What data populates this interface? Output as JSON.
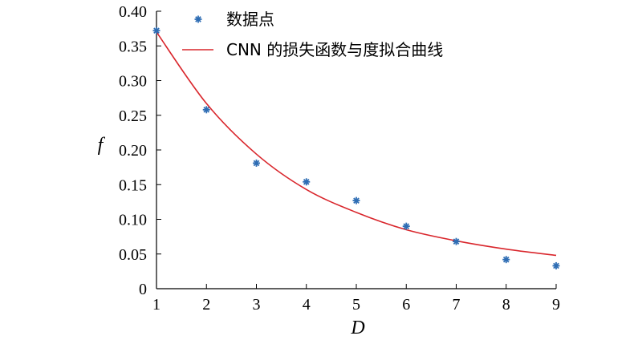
{
  "chart_data": {
    "type": "scatter",
    "xlabel": "D",
    "ylabel": "f",
    "xlim": [
      1,
      9
    ],
    "ylim": [
      0,
      0.4
    ],
    "xticks": [
      "1",
      "2",
      "3",
      "4",
      "5",
      "6",
      "7",
      "8",
      "9"
    ],
    "yticks": [
      "0",
      "0.05",
      "0.10",
      "0.15",
      "0.20",
      "0.25",
      "0.30",
      "0.35",
      "0.40"
    ],
    "grid": false,
    "legend_position": "top-right",
    "series": [
      {
        "name": "数据点",
        "kind": "scatter",
        "marker": "asterisk",
        "color": "#2e6db4",
        "x": [
          1,
          2,
          3,
          4,
          5,
          6,
          7,
          8,
          9
        ],
        "y": [
          0.372,
          0.258,
          0.181,
          0.154,
          0.127,
          0.09,
          0.068,
          0.042,
          0.033
        ]
      },
      {
        "name": "CNN 的损失函数与度拟合曲线",
        "kind": "line",
        "color": "#d9262c",
        "x": [
          1,
          2,
          3,
          4,
          5,
          6,
          7,
          8,
          9
        ],
        "y": [
          0.37,
          0.267,
          0.194,
          0.143,
          0.11,
          0.085,
          0.069,
          0.057,
          0.048
        ]
      }
    ]
  }
}
